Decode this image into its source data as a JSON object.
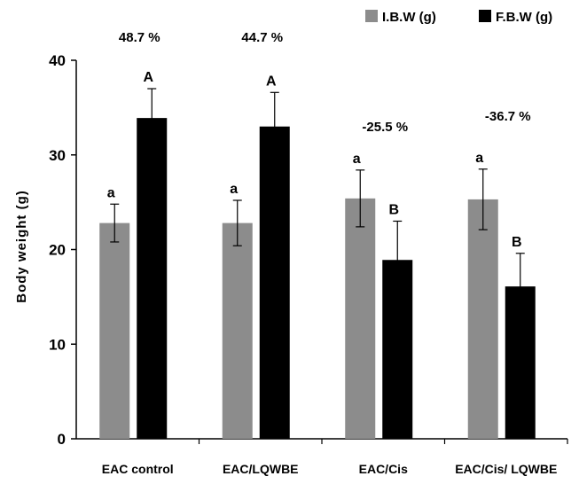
{
  "chart_data": {
    "type": "bar",
    "title": "",
    "xlabel": "",
    "ylabel": "Body weight (g)",
    "ylim": [
      0,
      40
    ],
    "yticks": [
      0,
      10,
      20,
      30,
      40
    ],
    "grid": false,
    "legend_position": "top-right",
    "categories": [
      "EAC control",
      "EAC/LQWBE",
      "EAC/Cis",
      "EAC/Cis/ LQWBE"
    ],
    "series": [
      {
        "name": "I.B.W (g)",
        "color": "#8c8c8c",
        "values": [
          22.8,
          22.8,
          25.4,
          25.3
        ],
        "errors": [
          2.0,
          2.4,
          3.0,
          3.2
        ],
        "labels": [
          "a",
          "a",
          "a",
          "a"
        ]
      },
      {
        "name": "F.B.W (g)",
        "color": "#000000",
        "values": [
          33.9,
          33.0,
          18.9,
          16.1
        ],
        "errors": [
          3.1,
          3.6,
          4.1,
          3.5
        ],
        "labels": [
          "A",
          "A",
          "B",
          "B"
        ]
      }
    ],
    "annotations": [
      "48.7 %",
      "44.7 %",
      "-25.5 %",
      "-36.7 %"
    ]
  }
}
